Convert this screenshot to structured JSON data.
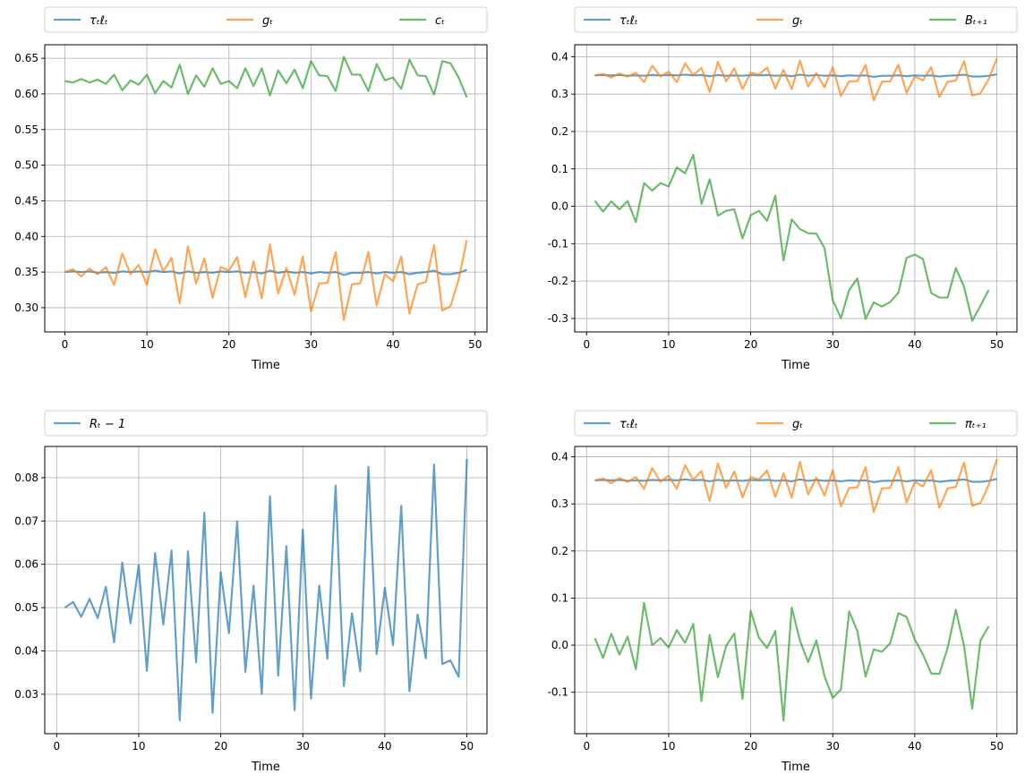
{
  "chart_data": [
    {
      "type": "line",
      "xlabel": "Time",
      "ylabel": "",
      "xlim": [
        -2.45,
        51.45
      ],
      "ylim": [
        0.266,
        0.669
      ],
      "xticks": [
        0,
        10,
        20,
        30,
        40,
        50
      ],
      "yticks": [
        0.3,
        0.35,
        0.4,
        0.45,
        0.5,
        0.55,
        0.6,
        0.65
      ],
      "ytick_decimals": 2,
      "grid": true,
      "legend_placement": "above-plot",
      "x_start": 0,
      "series": [
        {
          "name": "τₜℓₜ",
          "color": "#1f77b4",
          "values": [
            0.35,
            0.351,
            0.35,
            0.351,
            0.349,
            0.35,
            0.349,
            0.351,
            0.35,
            0.351,
            0.35,
            0.352,
            0.35,
            0.351,
            0.348,
            0.351,
            0.349,
            0.35,
            0.349,
            0.351,
            0.35,
            0.351,
            0.349,
            0.35,
            0.348,
            0.352,
            0.349,
            0.351,
            0.349,
            0.35,
            0.348,
            0.35,
            0.349,
            0.35,
            0.346,
            0.349,
            0.349,
            0.35,
            0.348,
            0.35,
            0.349,
            0.35,
            0.347,
            0.349,
            0.35,
            0.352,
            0.347,
            0.347,
            0.349,
            0.353
          ]
        },
        {
          "name": "gₜ",
          "color": "#ff7f0e",
          "values": [
            0.35,
            0.354,
            0.344,
            0.355,
            0.347,
            0.357,
            0.332,
            0.376,
            0.347,
            0.36,
            0.332,
            0.382,
            0.351,
            0.37,
            0.306,
            0.386,
            0.334,
            0.369,
            0.314,
            0.357,
            0.352,
            0.371,
            0.315,
            0.365,
            0.313,
            0.389,
            0.32,
            0.356,
            0.318,
            0.372,
            0.295,
            0.334,
            0.335,
            0.378,
            0.283,
            0.333,
            0.334,
            0.378,
            0.303,
            0.347,
            0.337,
            0.372,
            0.292,
            0.333,
            0.336,
            0.388,
            0.296,
            0.302,
            0.34,
            0.395
          ]
        },
        {
          "name": "cₜ",
          "color": "#2ca02c",
          "values": [
            0.618,
            0.616,
            0.621,
            0.616,
            0.62,
            0.614,
            0.627,
            0.605,
            0.619,
            0.613,
            0.627,
            0.601,
            0.618,
            0.609,
            0.641,
            0.6,
            0.626,
            0.61,
            0.636,
            0.614,
            0.618,
            0.608,
            0.636,
            0.611,
            0.636,
            0.598,
            0.633,
            0.615,
            0.634,
            0.608,
            0.646,
            0.626,
            0.625,
            0.604,
            0.652,
            0.627,
            0.627,
            0.604,
            0.642,
            0.619,
            0.623,
            0.607,
            0.648,
            0.626,
            0.625,
            0.599,
            0.646,
            0.643,
            0.623,
            0.595
          ]
        }
      ]
    },
    {
      "type": "line",
      "xlabel": "Time",
      "ylabel": "",
      "xlim": [
        -1.45,
        52.45
      ],
      "ylim": [
        -0.336,
        0.432
      ],
      "xticks": [
        0,
        10,
        20,
        30,
        40,
        50
      ],
      "yticks": [
        -0.3,
        -0.2,
        -0.1,
        0.0,
        0.1,
        0.2,
        0.3,
        0.4
      ],
      "ytick_decimals": 1,
      "grid": true,
      "legend_placement": "above-plot",
      "x_start": 1,
      "series": [
        {
          "name": "τₜℓₜ",
          "color": "#1f77b4",
          "values": [
            0.35,
            0.351,
            0.35,
            0.351,
            0.349,
            0.35,
            0.349,
            0.351,
            0.35,
            0.351,
            0.35,
            0.352,
            0.35,
            0.351,
            0.348,
            0.351,
            0.349,
            0.35,
            0.349,
            0.351,
            0.35,
            0.351,
            0.349,
            0.35,
            0.348,
            0.352,
            0.349,
            0.351,
            0.349,
            0.35,
            0.348,
            0.35,
            0.349,
            0.35,
            0.346,
            0.349,
            0.349,
            0.35,
            0.348,
            0.35,
            0.349,
            0.35,
            0.347,
            0.349,
            0.35,
            0.352,
            0.347,
            0.347,
            0.349,
            0.353
          ]
        },
        {
          "name": "gₜ",
          "color": "#ff7f0e",
          "values": [
            0.35,
            0.354,
            0.344,
            0.355,
            0.347,
            0.357,
            0.332,
            0.376,
            0.347,
            0.36,
            0.332,
            0.382,
            0.351,
            0.37,
            0.306,
            0.386,
            0.334,
            0.369,
            0.314,
            0.357,
            0.352,
            0.371,
            0.315,
            0.365,
            0.313,
            0.389,
            0.32,
            0.356,
            0.318,
            0.372,
            0.295,
            0.334,
            0.335,
            0.378,
            0.283,
            0.333,
            0.334,
            0.378,
            0.303,
            0.347,
            0.337,
            0.372,
            0.292,
            0.333,
            0.336,
            0.388,
            0.296,
            0.302,
            0.34,
            0.395
          ]
        },
        {
          "name": "Bₜ₊₁",
          "color": "#2ca02c",
          "values": [
            0.015,
            -0.014,
            0.013,
            -0.008,
            0.014,
            -0.042,
            0.062,
            0.042,
            0.062,
            0.053,
            0.104,
            0.088,
            0.138,
            0.006,
            0.072,
            -0.025,
            -0.012,
            -0.008,
            -0.086,
            -0.024,
            -0.012,
            -0.039,
            0.028,
            -0.145,
            -0.035,
            -0.061,
            -0.072,
            -0.073,
            -0.112,
            -0.251,
            -0.299,
            -0.224,
            -0.193,
            -0.301,
            -0.257,
            -0.268,
            -0.256,
            -0.231,
            -0.138,
            -0.129,
            -0.141,
            -0.232,
            -0.244,
            -0.244,
            -0.165,
            -0.215,
            -0.306,
            -0.266,
            -0.224
          ]
        }
      ]
    },
    {
      "type": "line",
      "xlabel": "Time",
      "ylabel": "",
      "xlim": [
        -1.45,
        52.45
      ],
      "ylim": [
        0.0209,
        0.0872
      ],
      "xticks": [
        0,
        10,
        20,
        30,
        40,
        50
      ],
      "yticks": [
        0.03,
        0.04,
        0.05,
        0.06,
        0.07,
        0.08
      ],
      "ytick_decimals": 2,
      "grid": true,
      "legend_placement": "above-plot",
      "x_start": 1,
      "series": [
        {
          "name": "Rₜ − 1",
          "color": "#1f77b4",
          "values": [
            0.05,
            0.0513,
            0.0479,
            0.052,
            0.0476,
            0.0548,
            0.042,
            0.0604,
            0.0464,
            0.0598,
            0.0354,
            0.0626,
            0.0461,
            0.0632,
            0.024,
            0.063,
            0.0374,
            0.0719,
            0.0257,
            0.0582,
            0.0441,
            0.0699,
            0.0352,
            0.0551,
            0.0301,
            0.0757,
            0.0343,
            0.0642,
            0.0263,
            0.068,
            0.029,
            0.0551,
            0.0382,
            0.0782,
            0.0319,
            0.0487,
            0.0353,
            0.0825,
            0.0393,
            0.0546,
            0.0413,
            0.0735,
            0.0307,
            0.0484,
            0.0383,
            0.083,
            0.037,
            0.0378,
            0.034,
            0.0843
          ]
        }
      ]
    },
    {
      "type": "line",
      "xlabel": "Time",
      "ylabel": "",
      "xlim": [
        -1.45,
        52.45
      ],
      "ylim": [
        -0.188,
        0.422
      ],
      "xticks": [
        0,
        10,
        20,
        30,
        40,
        50
      ],
      "yticks": [
        -0.1,
        0.0,
        0.1,
        0.2,
        0.3,
        0.4
      ],
      "ytick_decimals": 1,
      "grid": true,
      "legend_placement": "above-plot",
      "x_start": 1,
      "series": [
        {
          "name": "τₜℓₜ",
          "color": "#1f77b4",
          "values": [
            0.35,
            0.351,
            0.35,
            0.351,
            0.349,
            0.35,
            0.349,
            0.351,
            0.35,
            0.351,
            0.35,
            0.352,
            0.35,
            0.351,
            0.348,
            0.351,
            0.349,
            0.35,
            0.349,
            0.351,
            0.35,
            0.351,
            0.349,
            0.35,
            0.348,
            0.352,
            0.349,
            0.351,
            0.349,
            0.35,
            0.348,
            0.35,
            0.349,
            0.35,
            0.346,
            0.349,
            0.349,
            0.35,
            0.348,
            0.35,
            0.349,
            0.35,
            0.347,
            0.349,
            0.35,
            0.352,
            0.347,
            0.347,
            0.349,
            0.353
          ]
        },
        {
          "name": "gₜ",
          "color": "#ff7f0e",
          "values": [
            0.35,
            0.354,
            0.344,
            0.355,
            0.347,
            0.357,
            0.332,
            0.376,
            0.347,
            0.36,
            0.332,
            0.382,
            0.351,
            0.37,
            0.306,
            0.386,
            0.334,
            0.369,
            0.314,
            0.357,
            0.352,
            0.371,
            0.315,
            0.365,
            0.313,
            0.389,
            0.32,
            0.356,
            0.318,
            0.372,
            0.295,
            0.334,
            0.335,
            0.378,
            0.283,
            0.333,
            0.334,
            0.378,
            0.303,
            0.347,
            0.337,
            0.372,
            0.292,
            0.333,
            0.336,
            0.388,
            0.296,
            0.302,
            0.34,
            0.395
          ]
        },
        {
          "name": "πₜ₊₁",
          "color": "#2ca02c",
          "values": [
            0.015,
            -0.027,
            0.024,
            -0.02,
            0.018,
            -0.051,
            0.09,
            0.0,
            0.015,
            -0.005,
            0.032,
            0.005,
            0.045,
            -0.119,
            0.022,
            -0.068,
            -0.002,
            0.025,
            -0.114,
            0.073,
            0.016,
            -0.006,
            0.03,
            -0.16,
            0.08,
            0.01,
            -0.036,
            0.01,
            -0.066,
            -0.112,
            -0.094,
            0.072,
            0.03,
            -0.067,
            -0.009,
            -0.014,
            0.004,
            0.068,
            0.06,
            0.012,
            -0.02,
            -0.06,
            -0.061,
            -0.006,
            0.075,
            -0.001,
            -0.135,
            0.01,
            0.04
          ]
        }
      ]
    }
  ]
}
